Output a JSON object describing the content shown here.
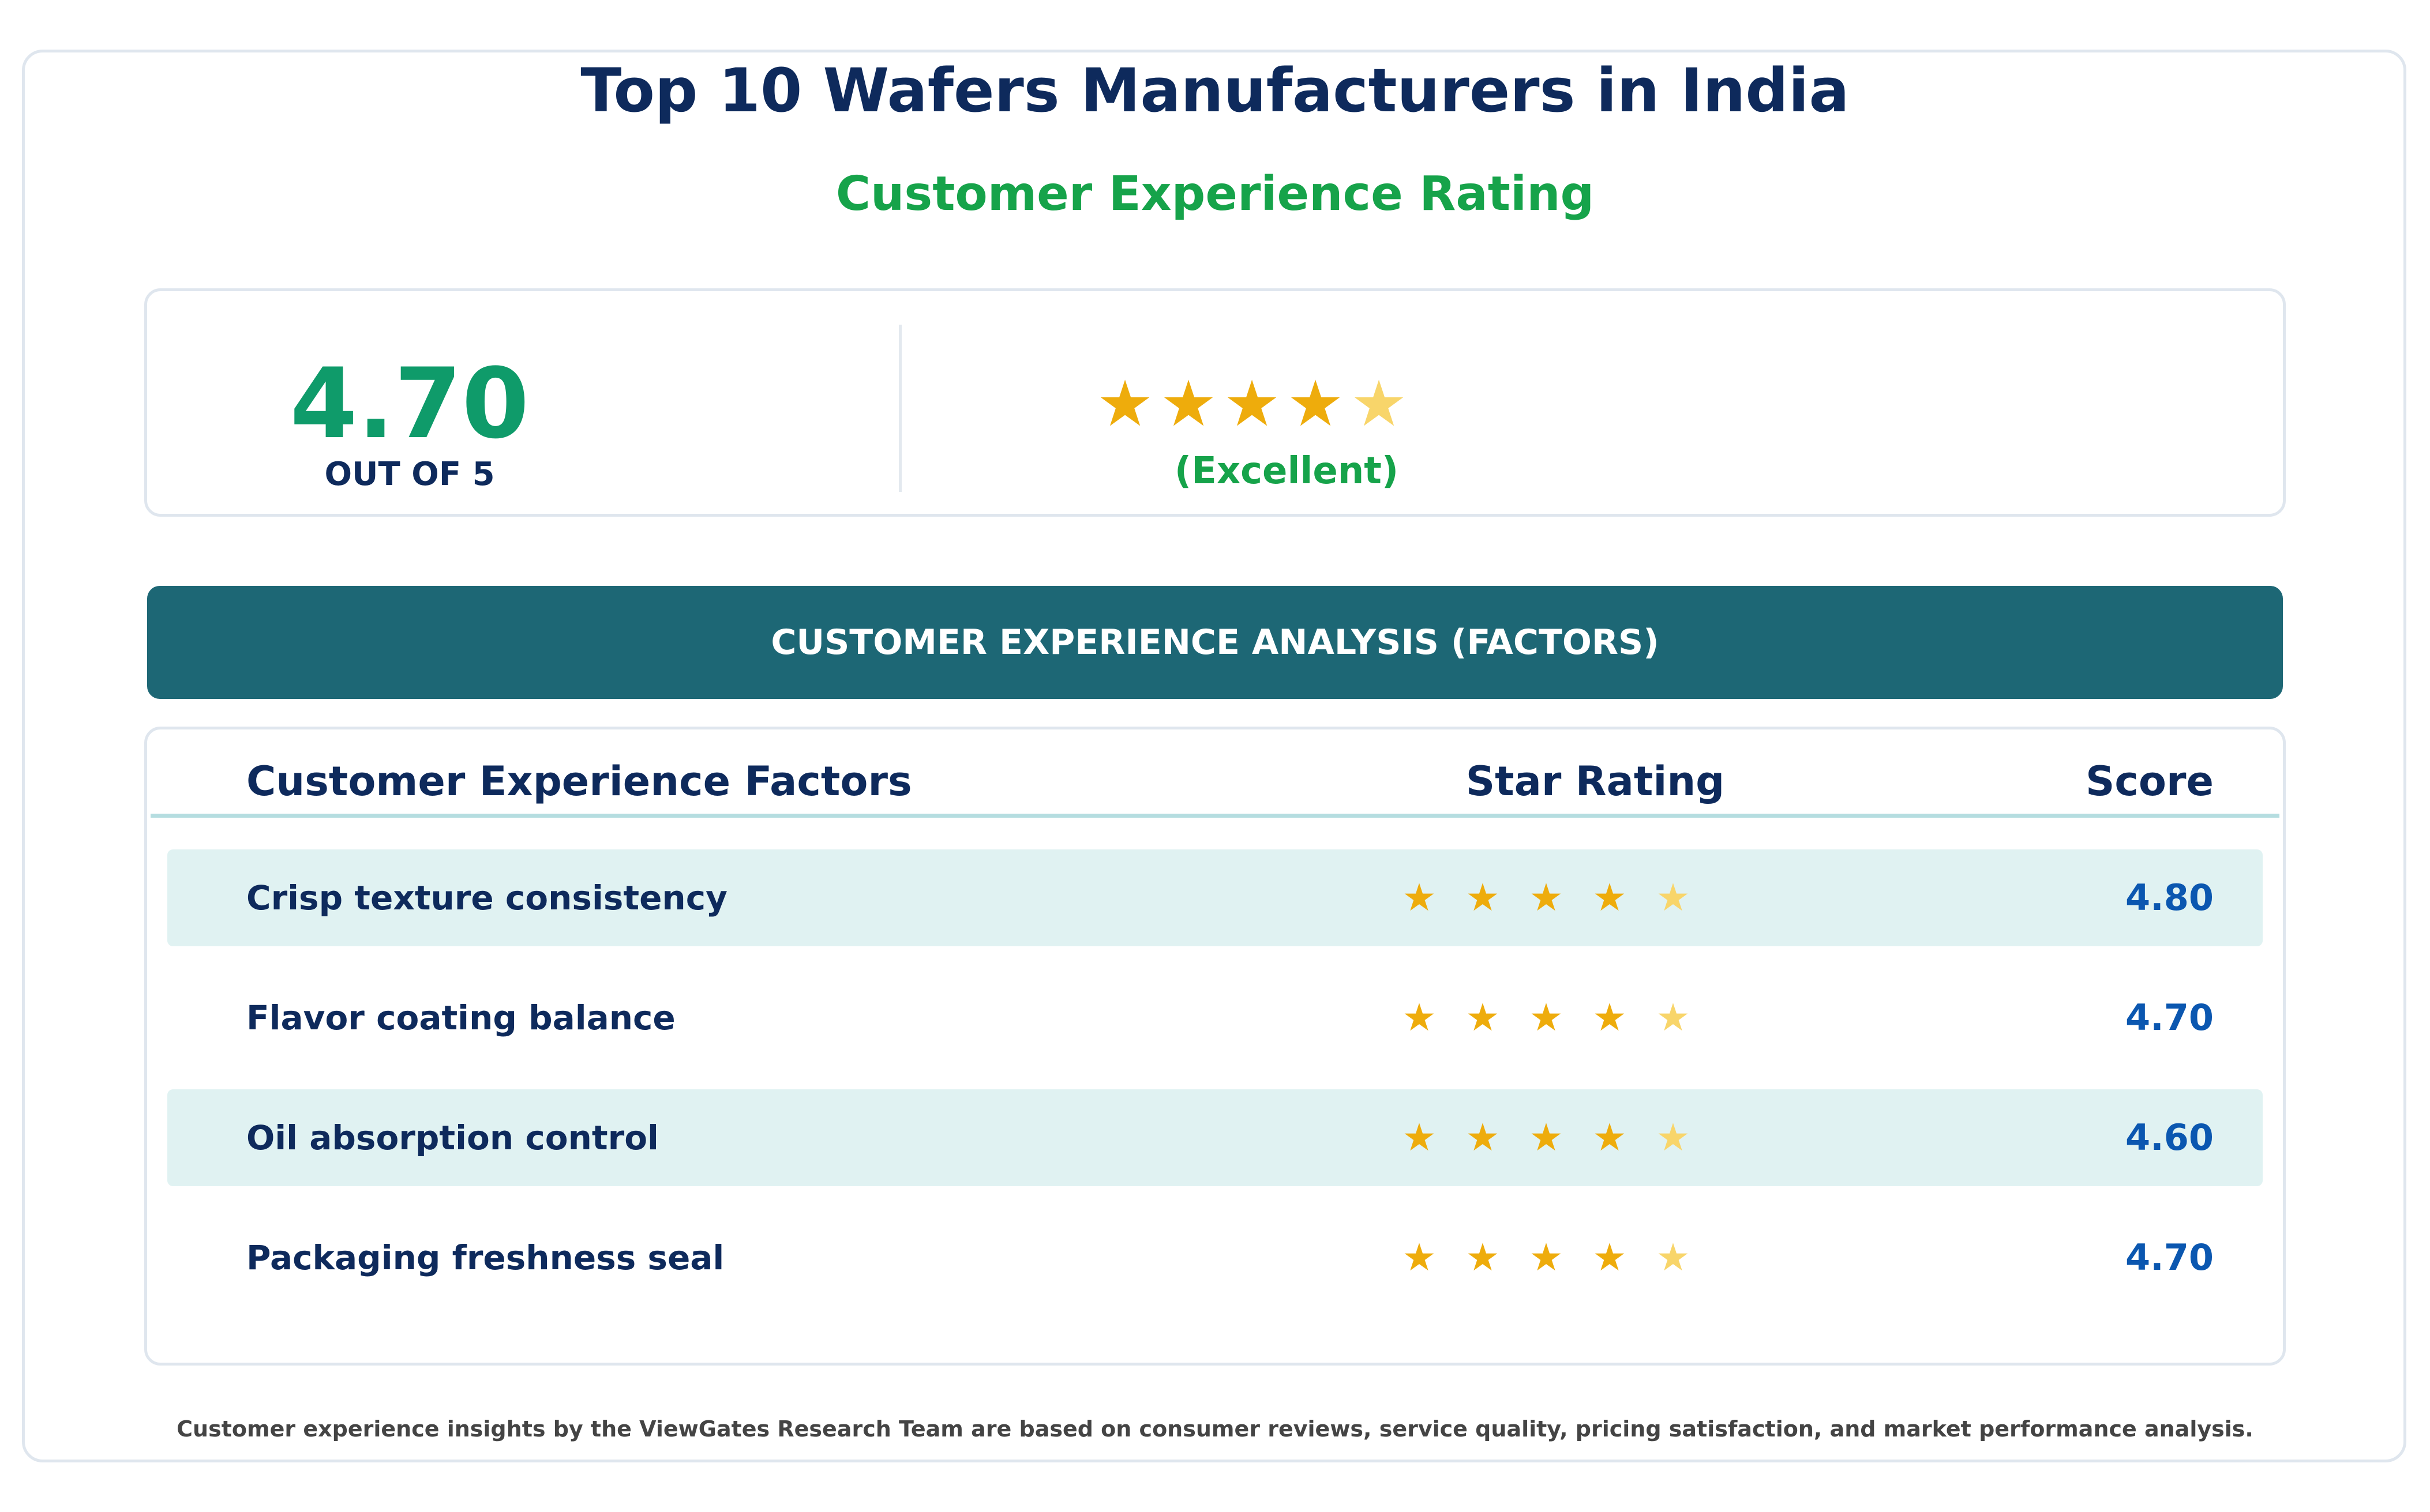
{
  "title": "Top 10 Wafers Manufacturers in India",
  "subtitle": "Customer Experience Rating",
  "summary": {
    "score": "4.70",
    "out_of": "OUT OF 5",
    "stars": "★★★★★",
    "stars_value": 4.7,
    "rating_word": "(Excellent)"
  },
  "banner": "CUSTOMER EXPERIENCE ANALYSIS (FACTORS)",
  "table": {
    "headers": {
      "factor": "Customer Experience Factors",
      "stars": "Star Rating",
      "score": "Score"
    },
    "rows": [
      {
        "factor": "Crisp texture consistency",
        "stars": "★ ★ ★ ★ ★",
        "score": "4.80",
        "stars_value": 4.8
      },
      {
        "factor": "Flavor coating balance",
        "stars": "★ ★ ★ ★ ★",
        "score": "4.70",
        "stars_value": 4.7
      },
      {
        "factor": "Oil absorption control",
        "stars": "★ ★ ★ ★ ★",
        "score": "4.60",
        "stars_value": 4.6
      },
      {
        "factor": "Packaging freshness seal",
        "stars": "★ ★ ★ ★ ★",
        "score": "4.70",
        "stars_value": 4.7
      }
    ]
  },
  "footnote": "Customer experience insights by the ViewGates Research Team are based on consumer reviews, service quality, pricing satisfaction, and market performance analysis.",
  "colors": {
    "title": "#0e2a5c",
    "accent_green": "#16a34a",
    "score_green": "#0f9b6a",
    "banner": "#1d6775",
    "star": "#eeac0c",
    "star_partial": "#f8d56a",
    "score_blue": "#0b57b0",
    "row_shade": "#e0f2f2"
  }
}
